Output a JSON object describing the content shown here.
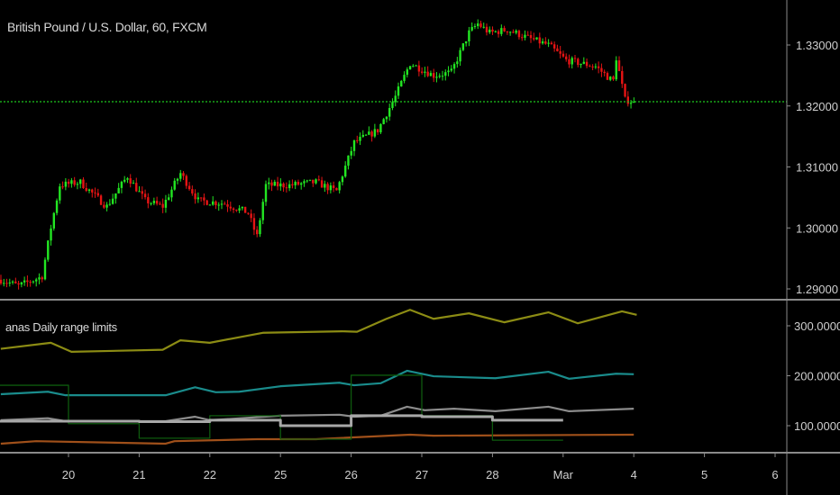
{
  "chart_data": [
    {
      "type": "candlestick",
      "title": "British Pound / U.S. Dollar, 60, FXCM",
      "ylim": [
        1.2865,
        1.3365
      ],
      "y_ticks": [
        "1.33000",
        "1.32000",
        "1.31000",
        "1.30000",
        "1.29000"
      ],
      "current_price_line": 1.3207,
      "colors": {
        "up": "#22e622",
        "down": "#e61414",
        "price_line": "#1ec81e"
      },
      "close_path": [
        [
          "Feb 19 01:00",
          1.2915
        ],
        [
          "Feb 19 07:00",
          1.2905
        ],
        [
          "Feb 19 15:00",
          1.292
        ],
        [
          "Feb 19 18:00",
          1.3
        ],
        [
          "Feb 19 21:00",
          1.307
        ],
        [
          "Feb 20 04:00",
          1.3075
        ],
        [
          "Feb 20 13:00",
          1.3035
        ],
        [
          "Feb 20 20:00",
          1.3085
        ],
        [
          "Feb 21 02:00",
          1.3045
        ],
        [
          "Feb 21 08:00",
          1.3035
        ],
        [
          "Feb 21 14:00",
          1.309
        ],
        [
          "Feb 21 20:00",
          1.3045
        ],
        [
          "Feb 22 05:00",
          1.304
        ],
        [
          "Feb 22 13:00",
          1.3025
        ],
        [
          "Feb 22 16:00",
          1.2985
        ],
        [
          "Feb 22 19:00",
          1.307
        ],
        [
          "Feb 25 03:00",
          1.307
        ],
        [
          "Feb 25 12:00",
          1.3075
        ],
        [
          "Feb 25 19:00",
          1.306
        ],
        [
          "Feb 26 01:00",
          1.314
        ],
        [
          "Feb 26 09:00",
          1.316
        ],
        [
          "Feb 26 15:00",
          1.3215
        ],
        [
          "Feb 26 20:00",
          1.327
        ],
        [
          "Feb 27 04:00",
          1.325
        ],
        [
          "Feb 27 10:00",
          1.3255
        ],
        [
          "Feb 27 16:00",
          1.332
        ],
        [
          "Feb 27 19:00",
          1.3335
        ],
        [
          "Feb 27 23:00",
          1.332
        ],
        [
          "Feb 28 05:00",
          1.3325
        ],
        [
          "Feb 28 13:00",
          1.331
        ],
        [
          "Feb 28 19:00",
          1.33
        ],
        [
          "Mar 1 01:00",
          1.3275
        ],
        [
          "Mar 1 11:00",
          1.3265
        ],
        [
          "Mar 1 17:00",
          1.324
        ],
        [
          "Mar 1 18:00",
          1.328
        ],
        [
          "Mar 1 21:00",
          1.321
        ],
        [
          "Mar 4 00:00",
          1.3207
        ]
      ]
    },
    {
      "type": "line",
      "title": "anas Daily range limits",
      "ylim": [
        40,
        350
      ],
      "y_ticks": [
        "300.0000",
        "200.0000",
        "100.0000"
      ],
      "series": [
        {
          "color": "#8c8c14",
          "width": 2.2,
          "points": [
            [
              "Feb 19 01:00",
              254
            ],
            [
              "Feb 19 18:00",
              266
            ],
            [
              "Feb 20 01:00",
              248
            ],
            [
              "Feb 21 08:00",
              252
            ],
            [
              "Feb 21 14:00",
              271
            ],
            [
              "Feb 22 00:00",
              266
            ],
            [
              "Feb 22 18:00",
              286
            ],
            [
              "Feb 25 21:00",
              289
            ],
            [
              "Feb 26 02:00",
              288
            ],
            [
              "Feb 26 12:00",
              314
            ],
            [
              "Feb 26 20:00",
              332
            ],
            [
              "Feb 27 04:00",
              314
            ],
            [
              "Feb 27 16:00",
              325
            ],
            [
              "Feb 28 04:00",
              307
            ],
            [
              "Feb 28 19:00",
              327
            ],
            [
              "Mar 1 05:00",
              305
            ],
            [
              "Mar 1 20:00",
              329
            ],
            [
              "Mar 4 01:00",
              322
            ]
          ]
        },
        {
          "color": "#1a8c8c",
          "width": 2.2,
          "points": [
            [
              "Feb 19 01:00",
              163
            ],
            [
              "Feb 19 17:00",
              168
            ],
            [
              "Feb 19 23:00",
              161
            ],
            [
              "Feb 21 09:00",
              161
            ],
            [
              "Feb 21 19:00",
              177
            ],
            [
              "Feb 22 02:00",
              167
            ],
            [
              "Feb 22 10:00",
              168
            ],
            [
              "Feb 25 00:00",
              179
            ],
            [
              "Feb 25 20:00",
              186
            ],
            [
              "Feb 26 01:00",
              181
            ],
            [
              "Feb 26 10:00",
              185
            ],
            [
              "Feb 26 19:00",
              210
            ],
            [
              "Feb 27 04:00",
              199
            ],
            [
              "Feb 28 01:00",
              195
            ],
            [
              "Feb 28 19:00",
              208
            ],
            [
              "Mar 1 02:00",
              194
            ],
            [
              "Mar 1 18:00",
              204
            ],
            [
              "Mar 4 00:00",
              203
            ]
          ]
        },
        {
          "color": "#8c8c8c",
          "width": 2.2,
          "points": [
            [
              "Feb 19 01:00",
              111
            ],
            [
              "Feb 19 17:00",
              115
            ],
            [
              "Feb 19 23:00",
              109
            ],
            [
              "Feb 21 09:00",
              109
            ],
            [
              "Feb 21 19:00",
              118
            ],
            [
              "Feb 22 00:00",
              111
            ],
            [
              "Feb 25 00:00",
              120
            ],
            [
              "Feb 25 20:00",
              122
            ],
            [
              "Feb 26 01:00",
              118
            ],
            [
              "Feb 26 10:00",
              120
            ],
            [
              "Feb 26 19:00",
              138
            ],
            [
              "Feb 27 01:00",
              131
            ],
            [
              "Feb 27 11:00",
              134
            ],
            [
              "Feb 28 01:00",
              129
            ],
            [
              "Feb 28 19:00",
              138
            ],
            [
              "Mar 1 02:00",
              129
            ],
            [
              "Mar 4 00:00",
              134
            ]
          ]
        },
        {
          "color": "#a0501a",
          "width": 2.2,
          "points": [
            [
              "Feb 19 01:00",
              64
            ],
            [
              "Feb 19 13:00",
              69
            ],
            [
              "Feb 21 09:00",
              64
            ],
            [
              "Feb 21 12:00",
              69
            ],
            [
              "Feb 22 16:00",
              73
            ],
            [
              "Feb 25 12:00",
              73
            ],
            [
              "Feb 26 20:00",
              82
            ],
            [
              "Feb 27 04:00",
              80
            ],
            [
              "Mar 4 00:00",
              82
            ]
          ]
        },
        {
          "color": "#0e5a0e",
          "width": 1.3,
          "step": true,
          "points": [
            [
              "Feb 19 00:00",
              181
            ],
            [
              "Feb 20 00:00",
              104
            ],
            [
              "Feb 21 00:00",
              75
            ],
            [
              "Feb 22 00:00",
              120
            ],
            [
              "Feb 25 00:00",
              73
            ],
            [
              "Feb 26 00:00",
              201
            ],
            [
              "Feb 27 00:00",
              120
            ],
            [
              "Feb 28 00:00",
              71
            ],
            [
              "Mar 1 00:00",
              71
            ]
          ]
        },
        {
          "color": "#a8a8a8",
          "width": 3,
          "step": true,
          "points": [
            [
              "Feb 19 00:00",
              109
            ],
            [
              "Feb 20 00:00",
              109
            ],
            [
              "Feb 21 00:00",
              108
            ],
            [
              "Feb 22 00:00",
              111
            ],
            [
              "Feb 25 00:00",
              100
            ],
            [
              "Feb 26 00:00",
              120
            ],
            [
              "Feb 27 00:00",
              118
            ],
            [
              "Feb 28 00:00",
              111
            ],
            [
              "Mar 1 00:00",
              111
            ]
          ]
        }
      ]
    }
  ],
  "x_axis": {
    "tick_labels": [
      "20",
      "21",
      "22",
      "25",
      "26",
      "27",
      "28",
      "Mar",
      "4",
      "5",
      "6"
    ],
    "tick_dates": [
      "Feb 20",
      "Feb 21",
      "Feb 22",
      "Feb 25",
      "Feb 26",
      "Feb 27",
      "Feb 28",
      "Mar 1",
      "Mar 4",
      "Mar 5",
      "Mar 6"
    ]
  },
  "colors": {
    "background": "#000000",
    "axis": "#8a8a8a",
    "text": "#cfcfcf"
  }
}
